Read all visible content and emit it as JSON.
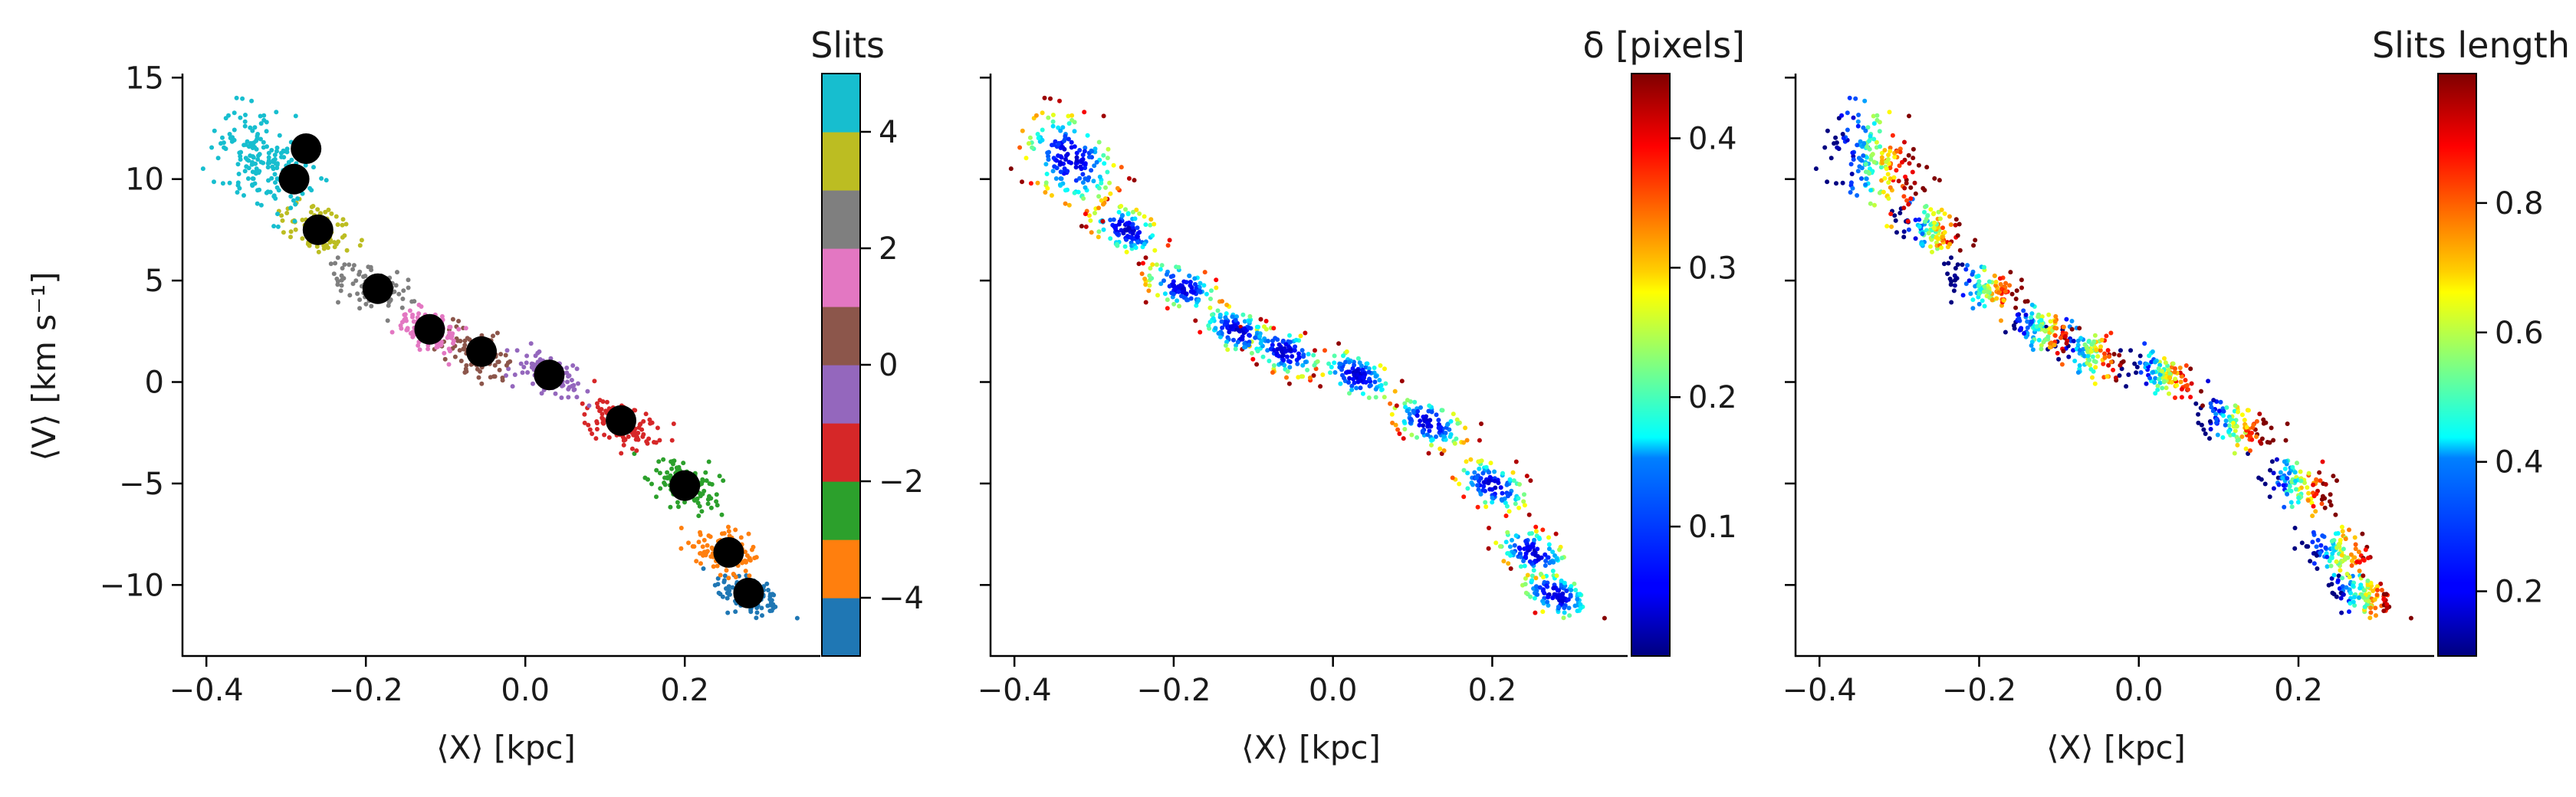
{
  "chart_data": [
    {
      "type": "scatter",
      "panel": "left",
      "xlabel": "⟨X⟩ [kpc]",
      "ylabel": "⟨V⟩ [km s⁻¹]",
      "xlim": [
        -0.43,
        0.37
      ],
      "ylim": [
        -13.5,
        15.2
      ],
      "xticks": [
        -0.4,
        -0.2,
        0.0,
        0.2
      ],
      "xtick_labels": [
        "−0.4",
        "−0.2",
        "0.0",
        "0.2"
      ],
      "yticks": [
        -10,
        -5,
        0,
        5,
        10,
        15
      ],
      "ytick_labels": [
        "−10",
        "−5",
        "0",
        "5",
        "10",
        "15"
      ],
      "grid": false,
      "color_by": "slit index (discrete)",
      "colorbar": {
        "title": "Slits",
        "range": [
          -5,
          5
        ],
        "ticks": [
          -4,
          -2,
          0,
          2,
          4
        ],
        "tick_labels": [
          "−4",
          "−2",
          "0",
          "2",
          "4"
        ],
        "colors": [
          "#1f77b4",
          "#ff7f0e",
          "#2ca02c",
          "#d62728",
          "#9467bd",
          "#8c564b",
          "#e377c2",
          "#7f7f7f",
          "#bcbd22",
          "#17becf"
        ]
      },
      "clusters": [
        {
          "slit": -5,
          "x": 0.28,
          "y": -10.5,
          "color": "#1f77b4"
        },
        {
          "slit": -4,
          "x": 0.25,
          "y": -8.4,
          "color": "#ff7f0e"
        },
        {
          "slit": -3,
          "x": 0.2,
          "y": -5.1,
          "color": "#2ca02c"
        },
        {
          "slit": -2,
          "x": 0.12,
          "y": -2.0,
          "color": "#d62728"
        },
        {
          "slit": -1,
          "x": 0.03,
          "y": 0.3,
          "color": "#9467bd"
        },
        {
          "slit": 0,
          "x": -0.06,
          "y": 1.5,
          "color": "#8c564b"
        },
        {
          "slit": 1,
          "x": -0.12,
          "y": 2.5,
          "color": "#e377c2"
        },
        {
          "slit": 2,
          "x": -0.19,
          "y": 4.7,
          "color": "#7f7f7f"
        },
        {
          "slit": 3,
          "x": -0.26,
          "y": 7.5,
          "color": "#bcbd22"
        },
        {
          "slit": 4,
          "x": -0.33,
          "y": 11.0,
          "color": "#17becf"
        }
      ],
      "mean_points": [
        {
          "x": 0.28,
          "y": -10.4
        },
        {
          "x": 0.255,
          "y": -8.4
        },
        {
          "x": 0.2,
          "y": -5.1
        },
        {
          "x": 0.12,
          "y": -1.9
        },
        {
          "x": 0.03,
          "y": 0.35
        },
        {
          "x": -0.055,
          "y": 1.5
        },
        {
          "x": -0.12,
          "y": 2.6
        },
        {
          "x": -0.185,
          "y": 4.6
        },
        {
          "x": -0.26,
          "y": 7.5
        },
        {
          "x": -0.29,
          "y": 10.0
        },
        {
          "x": -0.275,
          "y": 11.5
        }
      ]
    },
    {
      "type": "scatter",
      "panel": "middle",
      "xlabel": "⟨X⟩ [kpc]",
      "xlim": [
        -0.43,
        0.37
      ],
      "ylim": [
        -13.5,
        15.2
      ],
      "xticks": [
        -0.4,
        -0.2,
        0.0,
        0.2
      ],
      "xtick_labels": [
        "−0.4",
        "−0.2",
        "0.0",
        "0.2"
      ],
      "yticks": [
        -10,
        -5,
        0,
        5,
        10,
        15
      ],
      "grid": false,
      "color_by": "δ [pixels]",
      "colorbar": {
        "title": "δ [pixels]",
        "colormap": "jet",
        "range": [
          0.0,
          0.45
        ],
        "ticks": [
          0.1,
          0.2,
          0.3,
          0.4
        ],
        "tick_labels": [
          "0.1",
          "0.2",
          "0.3",
          "0.4"
        ]
      }
    },
    {
      "type": "scatter",
      "panel": "right",
      "xlabel": "⟨X⟩ [kpc]",
      "xlim": [
        -0.43,
        0.37
      ],
      "ylim": [
        -13.5,
        15.2
      ],
      "xticks": [
        -0.4,
        -0.2,
        0.0,
        0.2
      ],
      "xtick_labels": [
        "−0.4",
        "−0.2",
        "0.0",
        "0.2"
      ],
      "yticks": [
        -10,
        -5,
        0,
        5,
        10,
        15
      ],
      "grid": false,
      "color_by": "Slits length",
      "colorbar": {
        "title": "Slits length",
        "colormap": "jet",
        "range": [
          0.1,
          1.0
        ],
        "ticks": [
          0.2,
          0.4,
          0.6,
          0.8
        ],
        "tick_labels": [
          "0.2",
          "0.4",
          "0.6",
          "0.8"
        ]
      }
    }
  ]
}
